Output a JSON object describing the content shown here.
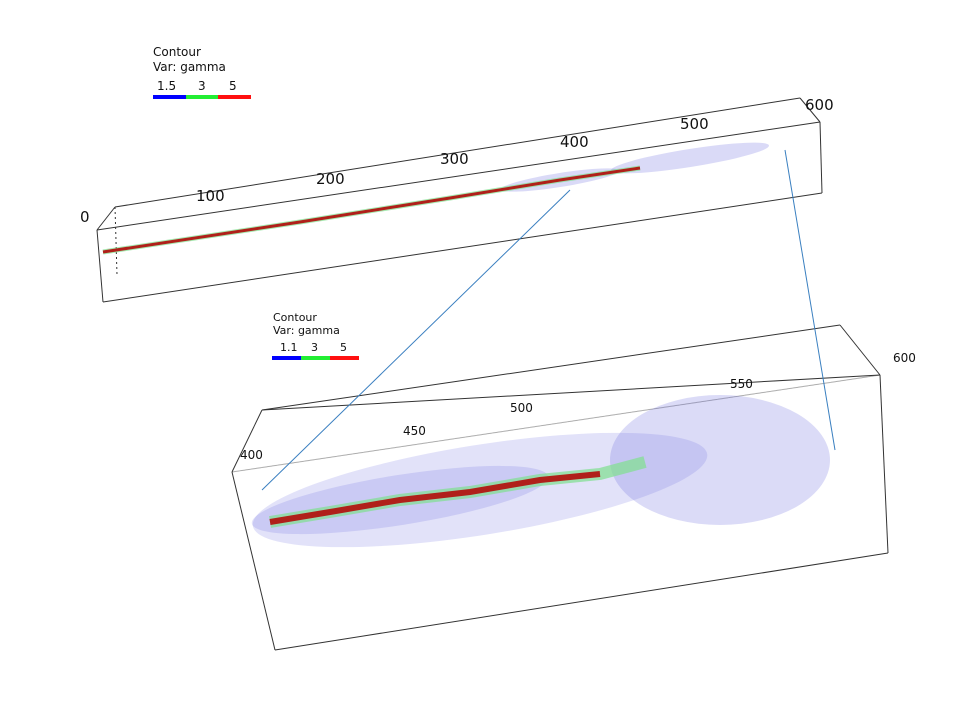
{
  "panels": [
    {
      "legend": {
        "title": "Contour",
        "variable": "Var: gamma",
        "labels": [
          "1.5",
          "3",
          "5"
        ]
      },
      "axis_ticks": [
        "0",
        "100",
        "200",
        "300",
        "400",
        "500",
        "600"
      ]
    },
    {
      "legend": {
        "title": "Contour",
        "variable": "Var: gamma",
        "labels": [
          "1.1",
          "3",
          "5"
        ]
      },
      "axis_ticks": [
        "400",
        "450",
        "500",
        "550",
        "600"
      ]
    }
  ]
}
